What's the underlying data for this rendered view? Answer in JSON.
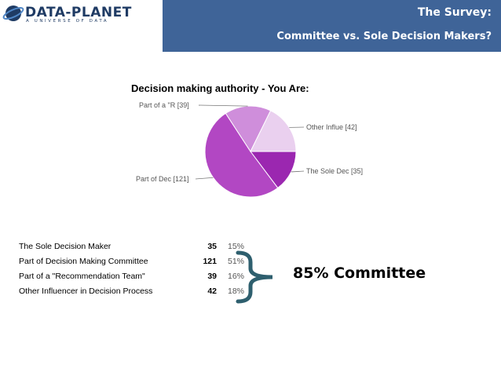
{
  "logo": {
    "name": "DATA-PLANET",
    "tagline": "A UNIVERSE OF DATA"
  },
  "header": {
    "title": "The Survey:",
    "subtitle": "Committee vs. Sole Decision Makers?"
  },
  "chart_data": {
    "type": "pie",
    "title": "Decision making authority - You Are:",
    "slices": [
      {
        "label": "The Sole Dec [35]",
        "value": 35,
        "color": "#9b27b0"
      },
      {
        "label": "Part of Dec [121]",
        "value": 121,
        "color": "#b247c3"
      },
      {
        "label": "Part of a \"R [39]",
        "value": 39,
        "color": "#cf8edb"
      },
      {
        "label": "Other Influe [42]",
        "value": 42,
        "color": "#ead0ef"
      }
    ]
  },
  "table": {
    "rows": [
      {
        "label": "The Sole Decision Maker",
        "count": "35",
        "percent": "15%"
      },
      {
        "label": "Part of Decision Making Committee",
        "count": "121",
        "percent": "51%"
      },
      {
        "label": "Part of a \"Recommendation Team\"",
        "count": "39",
        "percent": "16%"
      },
      {
        "label": "Other Influencer in Decision Process",
        "count": "42",
        "percent": "18%"
      }
    ]
  },
  "callout": {
    "text": "85% Committee",
    "brace_color": "#2e5f6e"
  }
}
